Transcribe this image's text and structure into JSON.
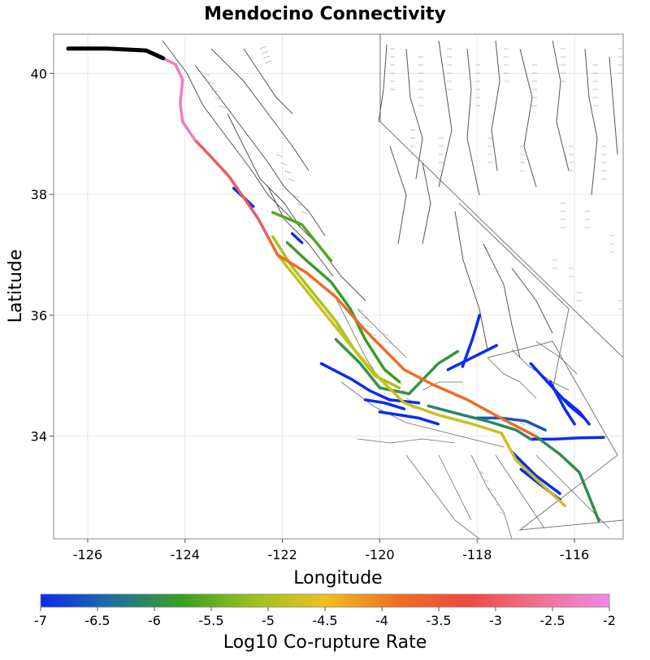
{
  "chart_data": {
    "type": "map",
    "title": "Mendocino Connectivity",
    "xlabel": "Longitude",
    "ylabel": "Latitude",
    "xlim": [
      -126.7,
      -115.0
    ],
    "ylim": [
      32.3,
      40.65
    ],
    "xticks": [
      -126,
      -124,
      -122,
      -120,
      -118,
      -116
    ],
    "yticks": [
      34,
      36,
      38,
      40
    ],
    "grid": true,
    "colorbar": {
      "label": "Log10 Co-rupture Rate",
      "min": -7,
      "max": -2,
      "ticks": [
        "-7",
        "-6.5",
        "-6",
        "-5.5",
        "-5",
        "-4.5",
        "-4",
        "-3.5",
        "-3",
        "-2.5",
        "-2"
      ],
      "colors": [
        "#0a2bf0",
        "#1f6fa0",
        "#3aa020",
        "#9cc020",
        "#f0c020",
        "#f07020",
        "#f04a40",
        "#f07090",
        "#f088e8"
      ]
    },
    "source_fault": {
      "name": "Mendocino",
      "color": "#000000",
      "points": [
        [
          -126.4,
          40.41
        ],
        [
          -125.6,
          40.41
        ],
        [
          -124.8,
          40.38
        ],
        [
          -124.45,
          40.25
        ]
      ]
    },
    "ruptures": [
      {
        "rate": -2.3,
        "points": [
          [
            -124.45,
            40.25
          ],
          [
            -124.2,
            40.15
          ],
          [
            -124.05,
            39.9
          ],
          [
            -124.1,
            39.5
          ],
          [
            -124.05,
            39.2
          ],
          [
            -123.8,
            38.9
          ]
        ]
      },
      {
        "rate": -3.0,
        "points": [
          [
            -123.8,
            38.9
          ],
          [
            -123.5,
            38.65
          ],
          [
            -123.1,
            38.3
          ],
          [
            -122.8,
            37.95
          ],
          [
            -122.5,
            37.6
          ],
          [
            -122.3,
            37.3
          ]
        ]
      },
      {
        "rate": -3.8,
        "points": [
          [
            -122.3,
            37.3
          ],
          [
            -122.1,
            37.0
          ],
          [
            -121.5,
            36.7
          ],
          [
            -120.9,
            36.3
          ],
          [
            -120.3,
            35.75
          ],
          [
            -119.5,
            35.1
          ],
          [
            -118.9,
            34.85
          ],
          [
            -118.2,
            34.6
          ],
          [
            -117.4,
            34.25
          ],
          [
            -116.8,
            34.0
          ]
        ]
      },
      {
        "rate": -4.8,
        "points": [
          [
            -122.1,
            37.0
          ],
          [
            -121.7,
            36.6
          ],
          [
            -121.2,
            36.1
          ],
          [
            -120.6,
            35.5
          ],
          [
            -120.0,
            34.95
          ],
          [
            -119.5,
            34.55
          ],
          [
            -118.8,
            34.35
          ],
          [
            -118.1,
            34.2
          ],
          [
            -117.5,
            34.05
          ],
          [
            -117.2,
            33.6
          ],
          [
            -116.6,
            33.15
          ],
          [
            -116.2,
            32.85
          ]
        ]
      },
      {
        "rate": -5.0,
        "points": [
          [
            -122.2,
            37.3
          ],
          [
            -121.8,
            36.8
          ],
          [
            -121.4,
            36.4
          ],
          [
            -120.9,
            35.9
          ],
          [
            -120.5,
            35.4
          ],
          [
            -120.1,
            35.0
          ],
          [
            -119.6,
            34.8
          ]
        ]
      },
      {
        "rate": -5.6,
        "points": [
          [
            -122.2,
            37.7
          ],
          [
            -121.9,
            37.6
          ],
          [
            -121.6,
            37.5
          ],
          [
            -121.3,
            37.2
          ],
          [
            -121.0,
            36.9
          ]
        ]
      },
      {
        "rate": -5.8,
        "points": [
          [
            -121.9,
            37.2
          ],
          [
            -121.5,
            36.9
          ],
          [
            -121.0,
            36.55
          ],
          [
            -120.6,
            36.1
          ],
          [
            -120.3,
            35.6
          ],
          [
            -119.9,
            35.1
          ],
          [
            -119.6,
            34.9
          ]
        ]
      },
      {
        "rate": -5.9,
        "points": [
          [
            -120.9,
            35.6
          ],
          [
            -120.4,
            35.2
          ],
          [
            -120.0,
            34.8
          ],
          [
            -119.4,
            34.7
          ],
          [
            -118.8,
            35.2
          ],
          [
            -118.4,
            35.4
          ]
        ]
      },
      {
        "rate": -6.0,
        "points": [
          [
            -116.8,
            34.0
          ],
          [
            -116.3,
            33.7
          ],
          [
            -115.9,
            33.4
          ],
          [
            -115.7,
            33.0
          ],
          [
            -115.5,
            32.6
          ]
        ]
      },
      {
        "rate": -6.1,
        "points": [
          [
            -119.0,
            34.5
          ],
          [
            -118.3,
            34.35
          ],
          [
            -117.8,
            34.25
          ],
          [
            -117.2,
            34.1
          ],
          [
            -116.9,
            33.95
          ]
        ]
      },
      {
        "rate": -6.6,
        "points": [
          [
            -118.0,
            34.3
          ],
          [
            -117.5,
            34.3
          ],
          [
            -117.0,
            34.25
          ],
          [
            -116.6,
            34.1
          ]
        ]
      },
      {
        "rate": -7.0,
        "points": [
          [
            -121.2,
            35.2
          ],
          [
            -120.6,
            34.95
          ],
          [
            -120.2,
            34.75
          ],
          [
            -119.8,
            34.6
          ],
          [
            -119.2,
            34.55
          ]
        ]
      },
      {
        "rate": -7.0,
        "points": [
          [
            -120.0,
            34.4
          ],
          [
            -119.6,
            34.35
          ],
          [
            -119.2,
            34.3
          ],
          [
            -118.8,
            34.2
          ]
        ]
      },
      {
        "rate": -7.0,
        "points": [
          [
            -120.3,
            34.6
          ],
          [
            -119.9,
            34.55
          ],
          [
            -119.5,
            34.45
          ]
        ]
      },
      {
        "rate": -7.0,
        "points": [
          [
            -118.6,
            35.1
          ],
          [
            -118.1,
            35.3
          ],
          [
            -117.6,
            35.5
          ]
        ]
      },
      {
        "rate": -7.0,
        "points": [
          [
            -118.3,
            35.15
          ],
          [
            -118.1,
            35.6
          ],
          [
            -117.95,
            36.0
          ]
        ]
      },
      {
        "rate": -7.0,
        "points": [
          [
            -116.9,
            35.2
          ],
          [
            -116.5,
            34.85
          ],
          [
            -116.1,
            34.5
          ],
          [
            -115.8,
            34.3
          ]
        ]
      },
      {
        "rate": -7.0,
        "points": [
          [
            -116.5,
            34.9
          ],
          [
            -116.2,
            34.45
          ],
          [
            -116.0,
            34.2
          ]
        ]
      },
      {
        "rate": -7.0,
        "points": [
          [
            -116.2,
            34.6
          ],
          [
            -115.9,
            34.4
          ],
          [
            -115.7,
            34.2
          ]
        ]
      },
      {
        "rate": -7.0,
        "points": [
          [
            -116.9,
            33.95
          ],
          [
            -116.4,
            33.95
          ],
          [
            -115.9,
            33.97
          ],
          [
            -115.4,
            33.98
          ]
        ]
      },
      {
        "rate": -7.0,
        "points": [
          [
            -117.3,
            33.75
          ],
          [
            -116.8,
            33.35
          ],
          [
            -116.3,
            33.05
          ]
        ]
      },
      {
        "rate": -7.0,
        "points": [
          [
            -123.0,
            38.1
          ],
          [
            -122.8,
            37.95
          ],
          [
            -122.6,
            37.8
          ]
        ]
      },
      {
        "rate": -7.0,
        "points": [
          [
            -121.8,
            37.35
          ],
          [
            -121.6,
            37.2
          ]
        ]
      },
      {
        "rate": -7.0,
        "points": [
          [
            -117.1,
            33.45
          ],
          [
            -116.7,
            33.2
          ],
          [
            -116.3,
            32.95
          ]
        ]
      }
    ]
  }
}
